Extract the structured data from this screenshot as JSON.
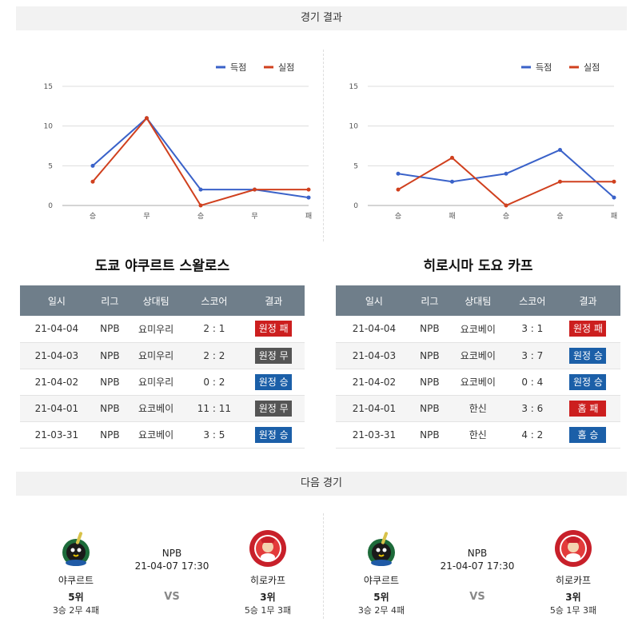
{
  "sections": {
    "results_title": "경기 결과",
    "next_title": "다음 경기"
  },
  "legend": {
    "scored": "득점",
    "allowed": "실점"
  },
  "colors": {
    "scored": "#3a62c9",
    "allowed": "#d0401e",
    "win": "#1b5fa8",
    "loss": "#cc1f1f",
    "draw": "#555555",
    "table_header": "#6f7e8a"
  },
  "chart_data": [
    {
      "type": "line",
      "categories": [
        "승",
        "무",
        "승",
        "무",
        "패"
      ],
      "ylim": [
        0,
        15
      ],
      "yticks": [
        0,
        5,
        10,
        15
      ],
      "legend_position": "top-right",
      "grid": true,
      "series": [
        {
          "name": "득점",
          "values": [
            5,
            11,
            2,
            2,
            1
          ]
        },
        {
          "name": "실점",
          "values": [
            3,
            11,
            0,
            2,
            2
          ]
        }
      ]
    },
    {
      "type": "line",
      "categories": [
        "승",
        "패",
        "승",
        "승",
        "패"
      ],
      "ylim": [
        0,
        15
      ],
      "yticks": [
        0,
        5,
        10,
        15
      ],
      "legend_position": "top-right",
      "grid": true,
      "series": [
        {
          "name": "득점",
          "values": [
            4,
            3,
            4,
            7,
            1
          ]
        },
        {
          "name": "실점",
          "values": [
            2,
            6,
            0,
            3,
            3
          ]
        }
      ]
    }
  ],
  "table_headers": [
    "일시",
    "리그",
    "상대팀",
    "스코어",
    "결과"
  ],
  "teams": [
    {
      "title": "도쿄 야쿠르트 스왈로스",
      "rows": [
        {
          "date": "21-04-04",
          "league": "NPB",
          "opponent": "요미우리",
          "score": "2 : 1",
          "result": "원정 패",
          "kind": "loss"
        },
        {
          "date": "21-04-03",
          "league": "NPB",
          "opponent": "요미우리",
          "score": "2 : 2",
          "result": "원정 무",
          "kind": "draw"
        },
        {
          "date": "21-04-02",
          "league": "NPB",
          "opponent": "요미우리",
          "score": "0 : 2",
          "result": "원정 승",
          "kind": "win"
        },
        {
          "date": "21-04-01",
          "league": "NPB",
          "opponent": "요코베이",
          "score": "11 : 11",
          "result": "원정 무",
          "kind": "draw"
        },
        {
          "date": "21-03-31",
          "league": "NPB",
          "opponent": "요코베이",
          "score": "3 : 5",
          "result": "원정 승",
          "kind": "win"
        }
      ]
    },
    {
      "title": "히로시마 도요 카프",
      "rows": [
        {
          "date": "21-04-04",
          "league": "NPB",
          "opponent": "요코베이",
          "score": "3 : 1",
          "result": "원정 패",
          "kind": "loss"
        },
        {
          "date": "21-04-03",
          "league": "NPB",
          "opponent": "요코베이",
          "score": "3 : 7",
          "result": "원정 승",
          "kind": "win"
        },
        {
          "date": "21-04-02",
          "league": "NPB",
          "opponent": "요코베이",
          "score": "0 : 4",
          "result": "원정 승",
          "kind": "win"
        },
        {
          "date": "21-04-01",
          "league": "NPB",
          "opponent": "한신",
          "score": "3 : 6",
          "result": "홈 패",
          "kind": "loss"
        },
        {
          "date": "21-03-31",
          "league": "NPB",
          "opponent": "한신",
          "score": "4 : 2",
          "result": "홈 승",
          "kind": "win"
        }
      ]
    }
  ],
  "next_matches": [
    {
      "league": "NPB",
      "time": "21-04-07 17:30",
      "vs": "VS",
      "home": {
        "name": "야쿠르트",
        "rank": "5위",
        "record": "3승 2무 4패",
        "logo": "swallows-logo"
      },
      "away": {
        "name": "히로카프",
        "rank": "3위",
        "record": "5승 1무 3패",
        "logo": "carp-logo"
      }
    },
    {
      "league": "NPB",
      "time": "21-04-07 17:30",
      "vs": "VS",
      "home": {
        "name": "야쿠르트",
        "rank": "5위",
        "record": "3승 2무 4패",
        "logo": "swallows-logo"
      },
      "away": {
        "name": "히로카프",
        "rank": "3위",
        "record": "5승 1무 3패",
        "logo": "carp-logo"
      }
    }
  ]
}
